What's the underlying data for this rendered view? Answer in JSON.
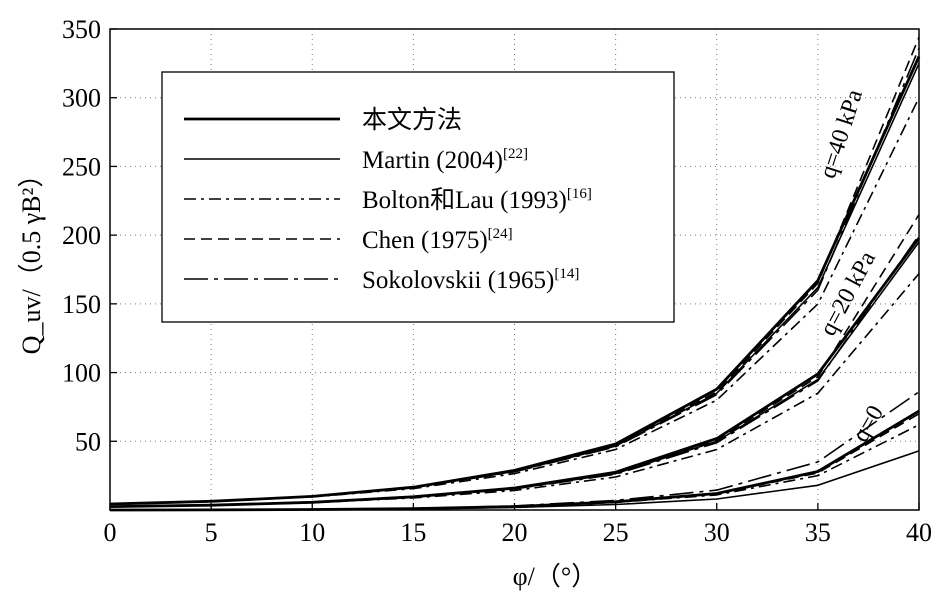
{
  "chart_data": {
    "type": "line",
    "xlabel": "φ/（°）",
    "ylabel": "Q_uv/（0.5 γB²）",
    "xlim": [
      0,
      40
    ],
    "ylim": [
      0,
      350
    ],
    "xticks": [
      0,
      5,
      10,
      15,
      20,
      25,
      30,
      35,
      40
    ],
    "yticks": [
      50,
      100,
      150,
      200,
      250,
      300,
      350
    ],
    "grid": true,
    "legend_position": "top-left",
    "legend": [
      {
        "name": "本文方法",
        "ref": "",
        "style": "solid-thick"
      },
      {
        "name": "Martin (2004)",
        "ref": "[22]",
        "style": "solid"
      },
      {
        "name": "Bolton和Lau (1993)",
        "ref": "[16]",
        "style": "dashdot"
      },
      {
        "name": "Chen (1975)",
        "ref": "[24]",
        "style": "dashed"
      },
      {
        "name": "Sokolovskii (1965)",
        "ref": "[14]",
        "style": "longdash-dot"
      }
    ],
    "annotations": [
      {
        "text": "q=40 kPa",
        "x": 36.5,
        "y": 272
      },
      {
        "text": "q=20 kPa",
        "x": 36.8,
        "y": 155
      },
      {
        "text": "q=0",
        "x": 37.8,
        "y": 60
      }
    ],
    "x": [
      0,
      5,
      10,
      15,
      20,
      25,
      30,
      35,
      40
    ],
    "series": [
      {
        "group": "q=40 kPa",
        "style": "solid-thick",
        "values": [
          4.4,
          6.3,
          9.9,
          16.6,
          28.8,
          48.0,
          88.0,
          167.0,
          330.0
        ]
      },
      {
        "group": "q=40 kPa",
        "style": "dashed",
        "values": [
          4.4,
          6.3,
          9.9,
          16.4,
          28.2,
          47.0,
          86.0,
          165.0,
          344.0
        ]
      },
      {
        "group": "q=40 kPa",
        "style": "solid",
        "values": [
          4.4,
          6.3,
          9.8,
          16.3,
          28.0,
          46.5,
          85.0,
          162.0,
          325.0
        ]
      },
      {
        "group": "q=40 kPa",
        "style": "longdash-dot",
        "values": [
          4.4,
          6.3,
          9.8,
          16.2,
          27.8,
          46.0,
          84.0,
          160.0,
          336.0
        ]
      },
      {
        "group": "q=40 kPa",
        "style": "dashdot",
        "values": [
          4.4,
          6.2,
          9.5,
          15.6,
          26.5,
          44.0,
          80.0,
          150.0,
          300.0
        ]
      },
      {
        "group": "q=20 kPa",
        "style": "solid-thick",
        "values": [
          2.5,
          3.5,
          5.6,
          9.6,
          16.0,
          27.5,
          52.0,
          99.0,
          198.0
        ]
      },
      {
        "group": "q=20 kPa",
        "style": "dashed",
        "values": [
          2.5,
          3.5,
          5.6,
          9.5,
          15.7,
          27.0,
          51.0,
          97.0,
          215.0
        ]
      },
      {
        "group": "q=20 kPa",
        "style": "solid",
        "values": [
          2.5,
          3.5,
          5.5,
          9.4,
          15.5,
          26.5,
          50.0,
          95.0,
          195.0
        ]
      },
      {
        "group": "q=20 kPa",
        "style": "longdash-dot",
        "values": [
          2.5,
          3.5,
          5.5,
          9.3,
          15.3,
          26.0,
          49.0,
          94.0,
          200.0
        ]
      },
      {
        "group": "q=20 kPa",
        "style": "dashdot",
        "values": [
          2.5,
          3.4,
          5.3,
          8.8,
          14.2,
          24.0,
          44.0,
          85.0,
          172.0
        ]
      },
      {
        "group": "q=0",
        "style": "solid-thick",
        "values": [
          0,
          0.1,
          0.4,
          1.0,
          2.5,
          6.0,
          12.0,
          28.0,
          72.0
        ]
      },
      {
        "group": "q=0",
        "style": "dashed",
        "values": [
          0,
          0.1,
          0.4,
          1.0,
          2.4,
          5.8,
          11.8,
          27.0,
          70.0
        ]
      },
      {
        "group": "q=0",
        "style": "longdash-dot",
        "values": [
          0,
          0.1,
          0.5,
          1.2,
          3.0,
          7.0,
          14.5,
          35.0,
          86.0
        ]
      },
      {
        "group": "q=0",
        "style": "solid",
        "values": [
          0,
          0.1,
          0.3,
          0.8,
          1.8,
          4.0,
          8.0,
          18.0,
          43.0
        ]
      },
      {
        "group": "q=0",
        "style": "dashdot",
        "values": [
          0,
          0.1,
          0.4,
          1.0,
          2.3,
          5.5,
          11.0,
          25.0,
          62.0
        ]
      }
    ]
  }
}
